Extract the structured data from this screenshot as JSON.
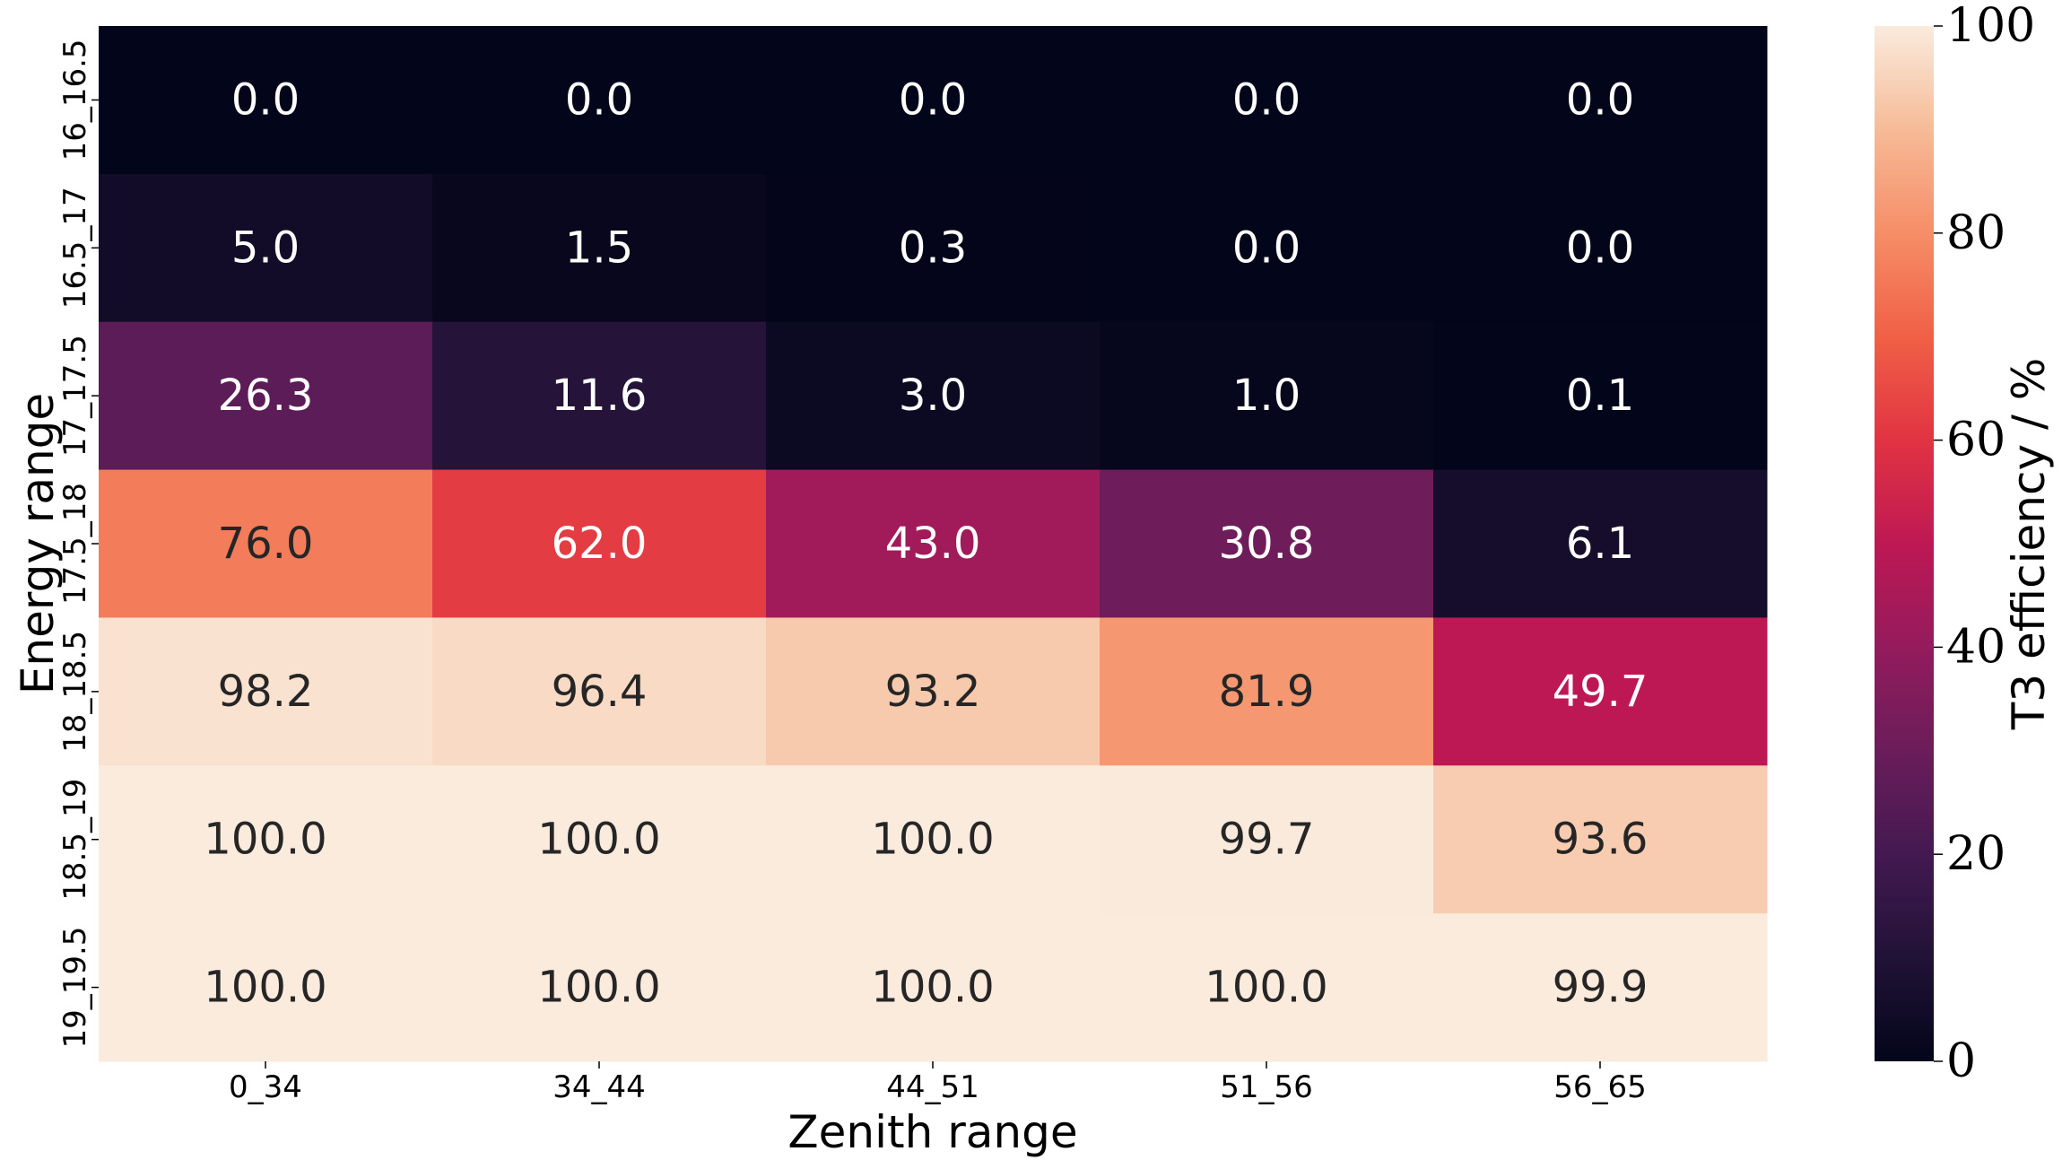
{
  "chart_data": {
    "type": "heatmap",
    "title": "",
    "xlabel": "Zenith range",
    "ylabel": "Energy range",
    "x_categories": [
      "0_34",
      "34_44",
      "44_51",
      "51_56",
      "56_65"
    ],
    "y_categories": [
      "16_16.5",
      "16.5_17",
      "17_17.5",
      "17.5_18",
      "18_18.5",
      "18.5_19",
      "19_19.5"
    ],
    "values": [
      [
        0.0,
        0.0,
        0.0,
        0.0,
        0.0
      ],
      [
        5.0,
        1.5,
        0.3,
        0.0,
        0.0
      ],
      [
        26.3,
        11.6,
        3.0,
        1.0,
        0.1
      ],
      [
        76.0,
        62.0,
        43.0,
        30.8,
        6.1
      ],
      [
        98.2,
        96.4,
        93.2,
        81.9,
        49.7
      ],
      [
        100.0,
        100.0,
        100.0,
        99.7,
        93.6
      ],
      [
        100.0,
        100.0,
        100.0,
        100.0,
        99.9
      ]
    ],
    "value_format": "0.0",
    "colorbar": {
      "label": "T3 efficiency / %",
      "range": [
        0,
        100
      ],
      "ticks": [
        0,
        20,
        40,
        60,
        80,
        100
      ],
      "colormap": "rocket"
    },
    "grid": false
  }
}
